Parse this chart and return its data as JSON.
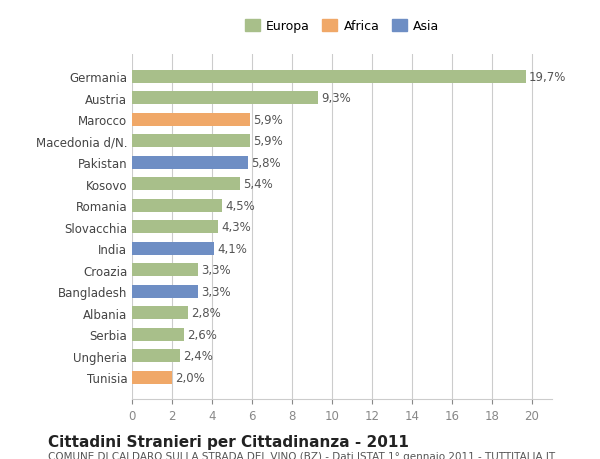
{
  "categories": [
    "Tunisia",
    "Ungheria",
    "Serbia",
    "Albania",
    "Bangladesh",
    "Croazia",
    "India",
    "Slovacchia",
    "Romania",
    "Kosovo",
    "Pakistan",
    "Macedonia d/N.",
    "Marocco",
    "Austria",
    "Germania"
  ],
  "values": [
    2.0,
    2.4,
    2.6,
    2.8,
    3.3,
    3.3,
    4.1,
    4.3,
    4.5,
    5.4,
    5.8,
    5.9,
    5.9,
    9.3,
    19.7
  ],
  "labels": [
    "2,0%",
    "2,4%",
    "2,6%",
    "2,8%",
    "3,3%",
    "3,3%",
    "4,1%",
    "4,3%",
    "4,5%",
    "5,4%",
    "5,8%",
    "5,9%",
    "5,9%",
    "9,3%",
    "19,7%"
  ],
  "colors": [
    "#f0a868",
    "#a8bf8a",
    "#a8bf8a",
    "#a8bf8a",
    "#6e8ec4",
    "#a8bf8a",
    "#6e8ec4",
    "#a8bf8a",
    "#a8bf8a",
    "#a8bf8a",
    "#6e8ec4",
    "#a8bf8a",
    "#f0a868",
    "#a8bf8a",
    "#a8bf8a"
  ],
  "legend": [
    {
      "label": "Europa",
      "color": "#a8bf8a"
    },
    {
      "label": "Africa",
      "color": "#f0a868"
    },
    {
      "label": "Asia",
      "color": "#6e8ec4"
    }
  ],
  "xlim": [
    0,
    21
  ],
  "xticks": [
    0,
    2,
    4,
    6,
    8,
    10,
    12,
    14,
    16,
    18,
    20
  ],
  "title_bold": "Cittadini Stranieri per Cittadinanza - 2011",
  "subtitle": "COMUNE DI CALDARO SULLA STRADA DEL VINO (BZ) - Dati ISTAT 1° gennaio 2011 - TUTTITALIA.IT",
  "background_color": "#ffffff",
  "grid_color": "#cccccc",
  "bar_height": 0.6,
  "label_fontsize": 8.5,
  "tick_fontsize": 8.5,
  "title_fontsize": 11,
  "subtitle_fontsize": 7.5
}
